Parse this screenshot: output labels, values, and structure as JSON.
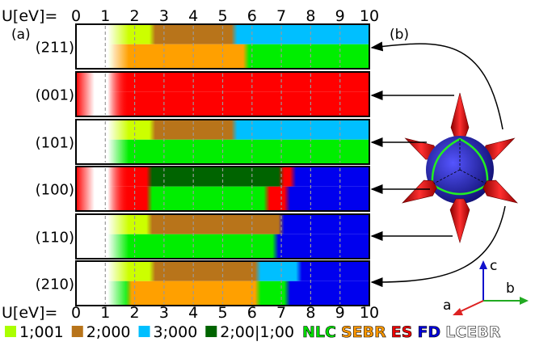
{
  "axis": {
    "label": "U[eV]=",
    "ticks": [
      "0",
      "1",
      "2",
      "3",
      "4",
      "5",
      "6",
      "7",
      "8",
      "9",
      "10"
    ]
  },
  "panel_labels": {
    "a": "(a)",
    "b": "(b)"
  },
  "rows": [
    {
      "label": "(211)",
      "top": [
        [
          "1;001",
          0,
          2.6
        ],
        [
          "2;000",
          2.6,
          5.4
        ],
        [
          "3;000",
          5.4,
          10
        ]
      ],
      "bottom": [
        [
          "1;001",
          0,
          1.2
        ],
        [
          "SEBR",
          1.2,
          5.8
        ],
        [
          "NLC",
          5.8,
          10
        ]
      ]
    },
    {
      "label": "(001)",
      "top": [
        [
          "ES",
          0,
          10
        ]
      ],
      "bottom": [
        [
          "ES",
          0,
          10
        ]
      ]
    },
    {
      "label": "(101)",
      "top": [
        [
          "1;001",
          0,
          2.6
        ],
        [
          "2;000",
          2.6,
          5.4
        ],
        [
          "3;000",
          5.4,
          10
        ]
      ],
      "bottom": [
        [
          "NLC",
          0,
          10
        ]
      ]
    },
    {
      "label": "(100)",
      "top": [
        [
          "ES",
          0,
          2.5
        ],
        [
          "2;00|1;00",
          2.5,
          7.0
        ],
        [
          "ES",
          7.0,
          7.4
        ],
        [
          "FD",
          7.4,
          10
        ]
      ],
      "bottom": [
        [
          "ES",
          0,
          2.5
        ],
        [
          "NLC",
          2.5,
          6.5
        ],
        [
          "ES",
          6.5,
          7.2
        ],
        [
          "FD",
          7.2,
          10
        ]
      ]
    },
    {
      "label": "(110)",
      "top": [
        [
          "1;001",
          0,
          2.5
        ],
        [
          "2;000",
          2.5,
          7.0
        ],
        [
          "FD",
          7.0,
          10
        ]
      ],
      "bottom": [
        [
          "NLC",
          0,
          2.5
        ],
        [
          "NLC",
          2.5,
          6.8
        ],
        [
          "FD",
          6.8,
          10
        ]
      ]
    },
    {
      "label": "(210)",
      "top": [
        [
          "1;001",
          0,
          2.6
        ],
        [
          "2;000",
          2.6,
          6.2
        ],
        [
          "3;000",
          6.2,
          7.6
        ],
        [
          "FD",
          7.6,
          10
        ]
      ],
      "bottom": [
        [
          "NLC",
          0,
          1.8
        ],
        [
          "SEBR",
          1.8,
          6.2
        ],
        [
          "NLC",
          6.2,
          7.2
        ],
        [
          "FD",
          7.2,
          10
        ]
      ]
    }
  ],
  "legend": [
    {
      "label": "1;001",
      "color": "#aaff00"
    },
    {
      "label": "2;000",
      "color": "#b8741a"
    },
    {
      "label": "3;000",
      "color": "#00bfff"
    },
    {
      "label": "2;00|1;00",
      "color": "#006400"
    }
  ],
  "phase_labels": [
    {
      "label": "NLC",
      "color": "#00dd00"
    },
    {
      "label": "SEBR",
      "color": "#ff9900"
    },
    {
      "label": "ES",
      "color": "#ee0000"
    },
    {
      "label": "FD",
      "color": "#0000dd"
    },
    {
      "label": "LCEBR",
      "color": "#ffffff"
    }
  ],
  "colors": {
    "1;001": "#ccff00",
    "2;000": "#b8741a",
    "3;000": "#00bfff",
    "2;00|1;00": "#006400",
    "NLC": "#00ee00",
    "SEBR": "#ffa000",
    "ES": "#ff0000",
    "FD": "#0000ee",
    "white": "#ffffff"
  },
  "axes3d": {
    "a": "a",
    "b": "b",
    "c": "c"
  }
}
